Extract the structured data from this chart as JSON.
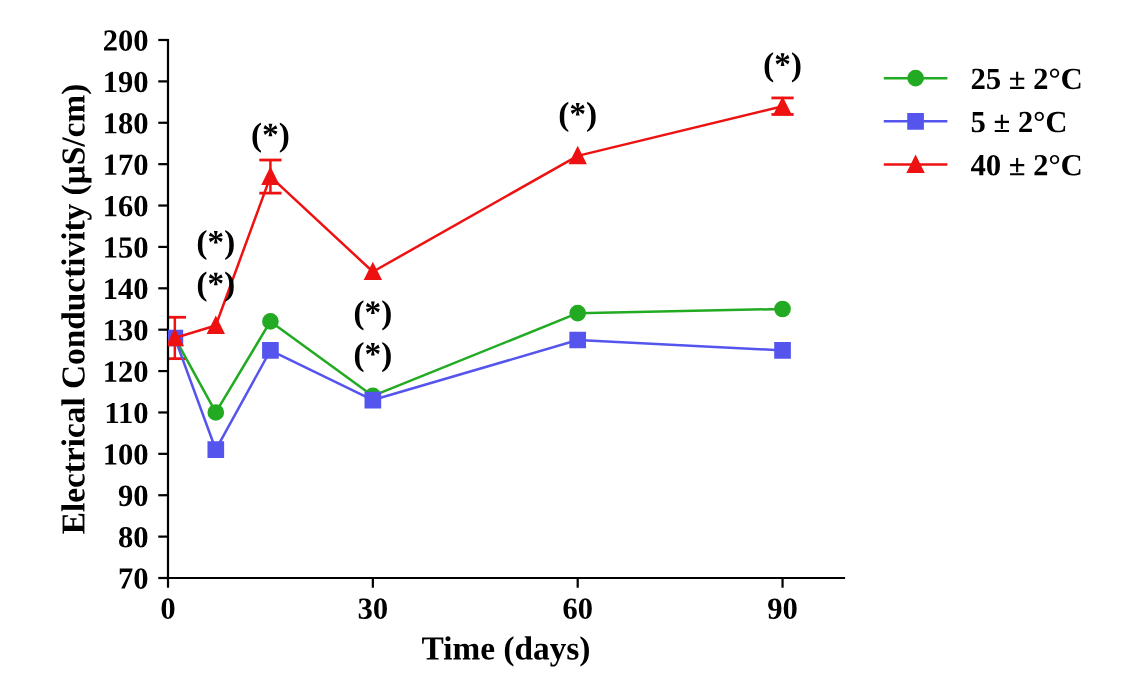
{
  "chart_data": {
    "type": "line",
    "xlabel": "Time (days)",
    "ylabel": "Electrical Conductivity (µS/cm)",
    "x": [
      1,
      7,
      15,
      30,
      60,
      90
    ],
    "series": [
      {
        "name": "25 ± 2°C",
        "color": "#22aa22",
        "marker": "circle",
        "values": [
          128,
          110,
          132,
          114,
          134,
          135
        ]
      },
      {
        "name": "5 ± 2°C",
        "color": "#5555ee",
        "marker": "square",
        "values": [
          128,
          101,
          125,
          113,
          127.5,
          125
        ]
      },
      {
        "name": "40 ± 2°C",
        "color": "#ee1111",
        "marker": "triangle",
        "values": [
          128,
          131,
          167,
          144,
          172,
          184
        ],
        "errors": [
          5,
          null,
          4,
          null,
          null,
          2
        ]
      }
    ],
    "xlim": [
      0,
      99
    ],
    "xticks": [
      0,
      30,
      60,
      90
    ],
    "ylim": [
      70,
      200
    ],
    "yticks": [
      70,
      80,
      90,
      100,
      110,
      120,
      130,
      140,
      150,
      160,
      170,
      180,
      190,
      200
    ],
    "grid": false,
    "legend": "top right",
    "annotations": [
      {
        "text": "(*)",
        "x": 7,
        "y": 131
      },
      {
        "text": "(*)",
        "x": 7,
        "y": 131
      },
      {
        "text": "(*)",
        "x": 15,
        "y": 167
      },
      {
        "text": "(*)",
        "x": 30,
        "y": 114
      },
      {
        "text": "(*)",
        "x": 30,
        "y": 114
      },
      {
        "text": "(*)",
        "x": 60,
        "y": 172
      },
      {
        "text": "(*)",
        "x": 90,
        "y": 184
      }
    ]
  }
}
